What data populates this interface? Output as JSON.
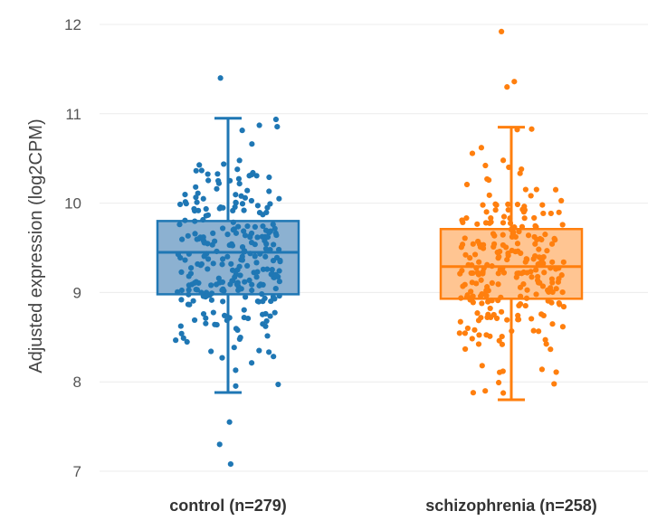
{
  "chart_data": {
    "type": "box",
    "ylabel": "Adjusted expression (log2CPM)",
    "xlabel": "",
    "ylim": [
      6.85,
      12.2
    ],
    "yticks": [
      7,
      8,
      9,
      10,
      11,
      12
    ],
    "yticklabels": [
      "7",
      "8",
      "9",
      "10",
      "11",
      "12"
    ],
    "grid": true,
    "categories": [
      "control (n=279)",
      "schizophrenia (n=258)"
    ],
    "series": [
      {
        "category": "control (n=279)",
        "n": 279,
        "color": "#1f77b4",
        "fill": "#7fa9cc",
        "whisker_low": 7.88,
        "q1": 8.98,
        "median": 9.45,
        "q3": 9.8,
        "whisker_high": 10.95,
        "outliers": [
          11.4,
          7.55,
          7.3,
          7.08
        ]
      },
      {
        "category": "schizophrenia (n=258)",
        "n": 258,
        "color": "#ff7f0e",
        "fill": "#ffbf86",
        "whisker_low": 7.8,
        "q1": 8.93,
        "median": 9.29,
        "q3": 9.71,
        "whisker_high": 10.85,
        "outliers": [
          11.92,
          11.36,
          11.3
        ]
      }
    ]
  }
}
